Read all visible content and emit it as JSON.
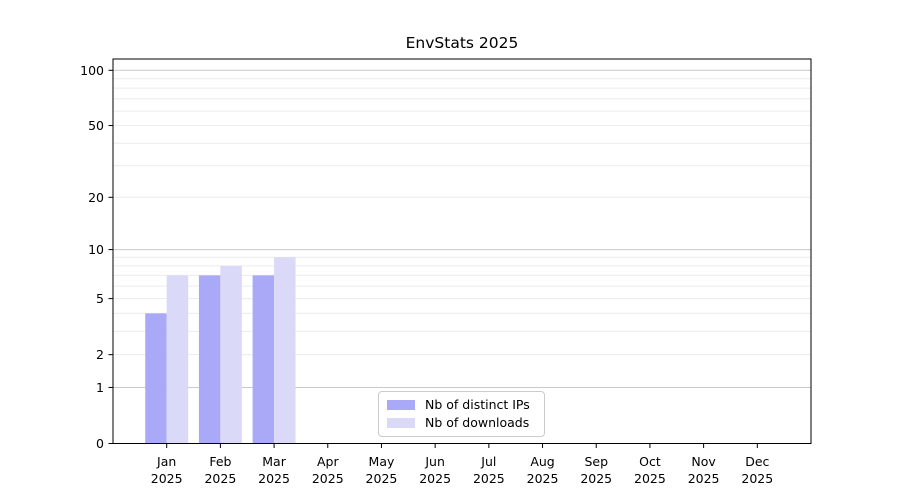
{
  "title": "EnvStats 2025",
  "legend": {
    "items": [
      {
        "label": "Nb of distinct IPs",
        "color": "#a9a9f7"
      },
      {
        "label": "Nb of downloads",
        "color": "#dadaf8"
      }
    ]
  },
  "chart_data": {
    "type": "bar",
    "title": "EnvStats 2025",
    "categories": [
      "Jan",
      "Feb",
      "Mar",
      "Apr",
      "May",
      "Jun",
      "Jul",
      "Aug",
      "Sep",
      "Oct",
      "Nov",
      "Dec"
    ],
    "category_second_line": "2025",
    "series": [
      {
        "name": "Nb of distinct IPs",
        "color": "#a9a9f7",
        "values": [
          4,
          7,
          7,
          0,
          0,
          0,
          0,
          0,
          0,
          0,
          0,
          0
        ]
      },
      {
        "name": "Nb of downloads",
        "color": "#dadaf8",
        "values": [
          7,
          8,
          9,
          0,
          0,
          0,
          0,
          0,
          0,
          0,
          0,
          0
        ]
      }
    ],
    "xlabel": "",
    "ylabel": "",
    "yscale": "log1p",
    "ylim": [
      0,
      115
    ],
    "yticks": [
      100,
      50,
      20,
      10,
      5,
      2,
      1,
      0
    ],
    "ytick_labels": [
      "100",
      "50",
      "20",
      "10",
      "5",
      "2",
      "1",
      "0"
    ],
    "major_gridlines": [
      1,
      10,
      100
    ],
    "minor_gridlines": [
      2,
      3,
      4,
      5,
      6,
      7,
      8,
      9,
      20,
      30,
      40,
      50,
      60,
      70,
      80,
      90
    ],
    "grid": true,
    "legend_position": "lower center",
    "colors": {
      "spine": "#000000",
      "major_grid": "#c9c9c9",
      "minor_grid": "#ececec",
      "tick_text": "#000000",
      "background": "#ffffff"
    }
  }
}
